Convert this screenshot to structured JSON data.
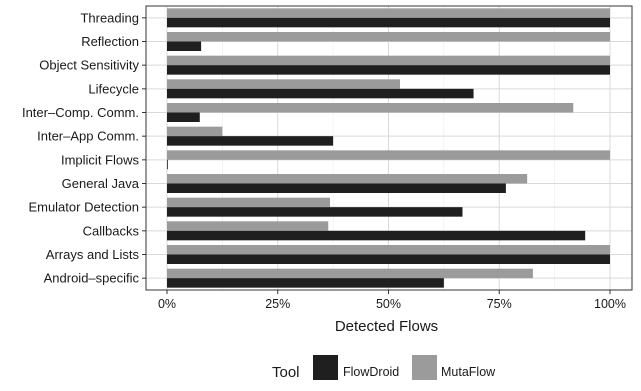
{
  "chart_data": {
    "type": "bar",
    "orientation": "horizontal",
    "categories": [
      "Threading",
      "Reflection",
      "Object Sensitivity",
      "Lifecycle",
      "Inter–Comp. Comm.",
      "Inter–App Comm.",
      "Implicit Flows",
      "General Java",
      "Emulator Detection",
      "Callbacks",
      "Arrays and Lists",
      "Android–specific"
    ],
    "series": [
      {
        "name": "FlowDroid",
        "color": "#1f1f1f",
        "values": [
          100,
          7.7,
          100,
          69.2,
          7.4,
          37.5,
          0,
          76.5,
          66.7,
          94.4,
          100,
          62.5
        ]
      },
      {
        "name": "MutaFlow",
        "color": "#9b9b9b",
        "values": [
          100,
          100,
          100,
          52.6,
          91.7,
          12.5,
          100,
          81.3,
          36.8,
          36.4,
          100,
          82.6
        ]
      }
    ],
    "xlim": [
      0,
      100
    ],
    "xticks": [
      "0%",
      "25%",
      "50%",
      "75%",
      "100%"
    ],
    "xtick_values": [
      0,
      25,
      50,
      75,
      100
    ],
    "xlabel": "Detected Flows",
    "ylabel": "",
    "grid": true,
    "legend": {
      "title": "Tool",
      "position": "bottom",
      "entries": [
        "FlowDroid",
        "MutaFlow"
      ]
    }
  }
}
